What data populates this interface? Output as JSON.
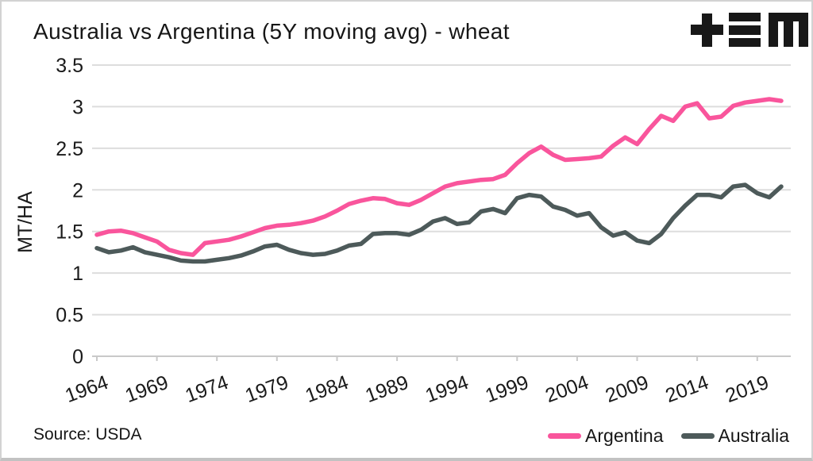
{
  "title": "Australia vs Argentina (5Y moving avg) - wheat",
  "logo": {
    "name": "tem-logo",
    "color": "#181818"
  },
  "source": "Source: USDA",
  "legend": [
    {
      "label": "Argentina",
      "color": "#f9559c"
    },
    {
      "label": "Australia",
      "color": "#4d5a5a"
    }
  ],
  "colors": {
    "argentina": "#f9559c",
    "australia": "#4d5a5a",
    "gridline": "#dddddd",
    "axis": "#c9c9c9",
    "text": "#1a1a1a"
  },
  "chart_data": {
    "type": "line",
    "title": "Australia vs Argentina (5Y moving avg) - wheat",
    "xlabel": "",
    "ylabel": "MT/HA",
    "ylim": [
      0,
      3.5
    ],
    "y_ticks": [
      0,
      0.5,
      1,
      1.5,
      2,
      2.5,
      3,
      3.5
    ],
    "x_ticks": [
      1964,
      1969,
      1974,
      1979,
      1984,
      1989,
      1994,
      1999,
      2004,
      2009,
      2014,
      2019
    ],
    "grid": "horizontal",
    "legend_position": "bottom-right",
    "x": [
      1964,
      1965,
      1966,
      1967,
      1968,
      1969,
      1970,
      1971,
      1972,
      1973,
      1974,
      1975,
      1976,
      1977,
      1978,
      1979,
      1980,
      1981,
      1982,
      1983,
      1984,
      1985,
      1986,
      1987,
      1988,
      1989,
      1990,
      1991,
      1992,
      1993,
      1994,
      1995,
      1996,
      1997,
      1998,
      1999,
      2000,
      2001,
      2002,
      2003,
      2004,
      2005,
      2006,
      2007,
      2008,
      2009,
      2010,
      2011,
      2012,
      2013,
      2014,
      2015,
      2016,
      2017,
      2018,
      2019,
      2020,
      2021
    ],
    "series": [
      {
        "name": "Argentina",
        "color": "#f9559c",
        "values": [
          1.46,
          1.5,
          1.51,
          1.48,
          1.43,
          1.38,
          1.28,
          1.24,
          1.22,
          1.36,
          1.38,
          1.4,
          1.44,
          1.49,
          1.54,
          1.57,
          1.58,
          1.6,
          1.63,
          1.68,
          1.75,
          1.83,
          1.87,
          1.9,
          1.89,
          1.84,
          1.82,
          1.88,
          1.96,
          2.04,
          2.08,
          2.1,
          2.12,
          2.13,
          2.18,
          2.32,
          2.44,
          2.52,
          2.42,
          2.36,
          2.37,
          2.38,
          2.4,
          2.53,
          2.63,
          2.55,
          2.73,
          2.89,
          2.83,
          3.0,
          3.04,
          2.86,
          2.88,
          3.01,
          3.05,
          3.07,
          3.09,
          3.07
        ]
      },
      {
        "name": "Australia",
        "color": "#4d5a5a",
        "values": [
          1.3,
          1.25,
          1.27,
          1.31,
          1.25,
          1.22,
          1.19,
          1.15,
          1.14,
          1.14,
          1.16,
          1.18,
          1.21,
          1.26,
          1.32,
          1.34,
          1.28,
          1.24,
          1.22,
          1.23,
          1.27,
          1.33,
          1.35,
          1.47,
          1.48,
          1.48,
          1.46,
          1.52,
          1.62,
          1.66,
          1.59,
          1.61,
          1.74,
          1.77,
          1.72,
          1.9,
          1.94,
          1.92,
          1.8,
          1.76,
          1.69,
          1.72,
          1.55,
          1.45,
          1.49,
          1.39,
          1.36,
          1.47,
          1.66,
          1.81,
          1.94,
          1.94,
          1.91,
          2.04,
          2.06,
          1.96,
          1.91,
          2.04
        ]
      }
    ]
  }
}
